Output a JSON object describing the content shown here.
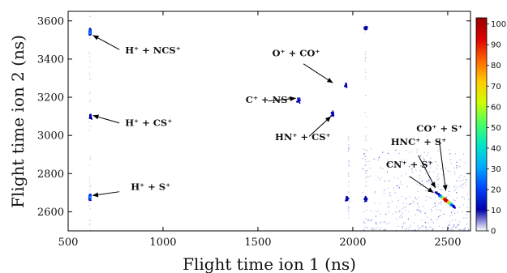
{
  "chart_data": {
    "type": "heatmap",
    "title": "",
    "xlabel": "Flight time ion 1 (ns)",
    "ylabel": "Flight time ion 2 (ns)",
    "xlim": [
      500,
      2620
    ],
    "ylim": [
      2500,
      3650
    ],
    "xticks": [
      500,
      1000,
      1500,
      2000,
      2500
    ],
    "yticks": [
      2600,
      2800,
      3000,
      3200,
      3400,
      3600
    ],
    "colorbar": {
      "range": [
        0,
        103
      ],
      "ticks": [
        0,
        10,
        20,
        30,
        40,
        50,
        60,
        70,
        80,
        90,
        100
      ],
      "colors": [
        "#ffffff",
        "#0000aa",
        "#0044ff",
        "#00aaff",
        "#00e5c8",
        "#44ff66",
        "#ccff00",
        "#ffcc00",
        "#ff6600",
        "#dd0000",
        "#990000"
      ]
    },
    "grid": false,
    "legend": "none",
    "features": [
      {
        "x": 612,
        "y": 3545,
        "peak": 28
      },
      {
        "x": 615,
        "y": 3100,
        "peak": 8
      },
      {
        "x": 612,
        "y": 2680,
        "peak": 30
      },
      {
        "x": 1710,
        "y": 3185,
        "peak": 6
      },
      {
        "x": 1890,
        "y": 3115,
        "peak": 6
      },
      {
        "x": 1960,
        "y": 3265,
        "peak": 5
      },
      {
        "x": 2065,
        "y": 3565,
        "peak": 4
      },
      {
        "x": 2065,
        "y": 2670,
        "peak": 12
      },
      {
        "x": 1965,
        "y": 2670,
        "peak": 6
      },
      {
        "x": 2485,
        "y": 2665,
        "peak": 100
      }
    ],
    "annotations": [
      {
        "text": "H⁺ + NCS⁺",
        "label_x": 800,
        "label_y": 3430,
        "arrow_from": [
          770,
          3450
        ],
        "arrow_to": [
          630,
          3525
        ]
      },
      {
        "text": "O⁺ + CO⁺",
        "label_x": 1575,
        "label_y": 3415,
        "arrow_from": [
          1740,
          3375
        ],
        "arrow_to": [
          1895,
          3275
        ]
      },
      {
        "text": "C⁺ + NS⁺",
        "label_x": 1435,
        "label_y": 3170,
        "arrow_from": [
          1555,
          3180
        ],
        "arrow_to": [
          1700,
          3195
        ]
      },
      {
        "text": "H⁺ + CS⁺",
        "label_x": 800,
        "label_y": 3050,
        "arrow_from": [
          770,
          3065
        ],
        "arrow_to": [
          630,
          3105
        ]
      },
      {
        "text": "HN⁺ + CS⁺",
        "label_x": 1590,
        "label_y": 2975,
        "arrow_from": [
          1770,
          2995
        ],
        "arrow_to": [
          1885,
          3100
        ]
      },
      {
        "text": "HNC⁺ + S⁺",
        "label_x": 2200,
        "label_y": 2950,
        "arrow_from": [
          2345,
          2895
        ],
        "arrow_to": [
          2435,
          2725
        ]
      },
      {
        "text": "CO⁺ + S⁺",
        "label_x": 2335,
        "label_y": 3020,
        "arrow_from": [
          2455,
          2975
        ],
        "arrow_to": [
          2490,
          2710
        ]
      },
      {
        "text": "H⁺ + S⁺",
        "label_x": 830,
        "label_y": 2715,
        "arrow_from": [
          770,
          2705
        ],
        "arrow_to": [
          628,
          2685
        ]
      },
      {
        "text": "CN⁺ + S⁺",
        "label_x": 2175,
        "label_y": 2830,
        "arrow_from": [
          2300,
          2785
        ],
        "arrow_to": [
          2425,
          2700
        ]
      }
    ]
  }
}
